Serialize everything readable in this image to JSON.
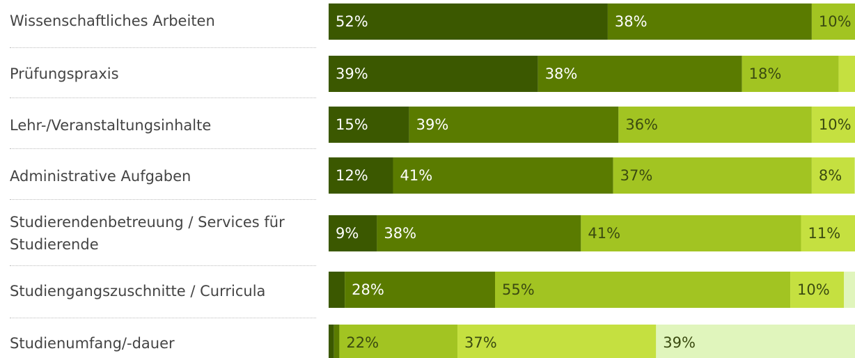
{
  "chart_data": {
    "type": "stacked-bar",
    "orientation": "horizontal",
    "categories": [
      "Wissenschaftliches Arbeiten",
      "Prüfungspraxis",
      "Lehr-/Veranstaltungsinhalte",
      "Administrative Aufgaben",
      "Studierendenbetreuung / Services für Studierende",
      "Studiengangszuschnitte / Curricula",
      "Studienumfang/-dauer"
    ],
    "xlim": [
      0,
      100
    ],
    "series": [
      {
        "color": "#3b5800",
        "values": [
          52,
          39,
          15,
          12,
          9,
          3,
          1
        ],
        "value_labels": [
          "52%",
          "39%",
          "15%",
          "12%",
          "9%",
          null,
          null
        ]
      },
      {
        "color": "#5a7b00",
        "values": [
          38,
          38,
          39,
          41,
          38,
          28,
          1
        ],
        "value_labels": [
          "38%",
          "38%",
          "39%",
          "41%",
          "38%",
          "28%",
          null
        ]
      },
      {
        "color": "#a2c422",
        "values": [
          10,
          18,
          36,
          37,
          41,
          55,
          22
        ],
        "value_labels": [
          "10%",
          "18%",
          "36%",
          "37%",
          "41%",
          "55%",
          "22%"
        ]
      },
      {
        "color": "#c5e040",
        "values": [
          0,
          5,
          10,
          8,
          11,
          10,
          37
        ],
        "value_labels": [
          null,
          null,
          "10%",
          "8%",
          "11%",
          "10%",
          "37%"
        ]
      },
      {
        "color": "#e0f5bc",
        "values": [
          0,
          0,
          0,
          2,
          1,
          4,
          39
        ],
        "value_labels": [
          null,
          null,
          null,
          null,
          null,
          null,
          "39%"
        ]
      }
    ]
  }
}
